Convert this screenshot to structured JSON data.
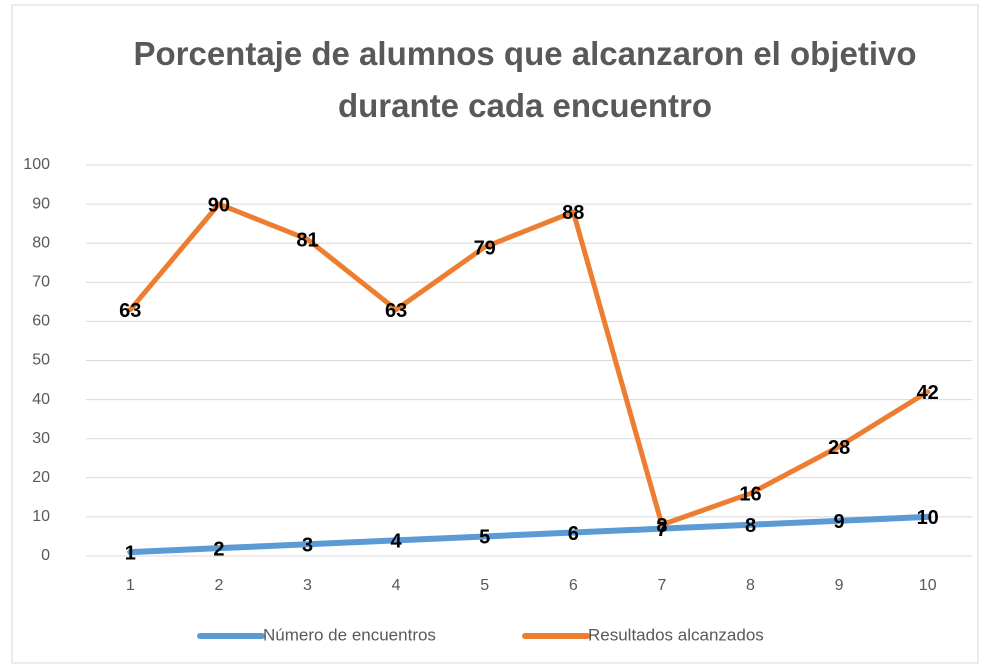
{
  "chart_data": {
    "type": "line",
    "title": "Porcentaje de alumnos que alcanzaron el objetivo durante cada encuentro",
    "categories": [
      1,
      2,
      3,
      4,
      5,
      6,
      7,
      8,
      9,
      10
    ],
    "series": [
      {
        "name": "Número de encuentros",
        "color": "#5b9bd5",
        "values": [
          1,
          2,
          3,
          4,
          5,
          6,
          7,
          8,
          9,
          10
        ]
      },
      {
        "name": "Resultados alcanzados",
        "color": "#ed7d31",
        "values": [
          63,
          90,
          81,
          63,
          79,
          88,
          8,
          16,
          28,
          42
        ]
      }
    ],
    "ylim": [
      0,
      100
    ],
    "yticks": [
      0,
      10,
      20,
      30,
      40,
      50,
      60,
      70,
      80,
      90,
      100
    ],
    "grid": true,
    "legend": "bottom",
    "data_labels": true
  }
}
